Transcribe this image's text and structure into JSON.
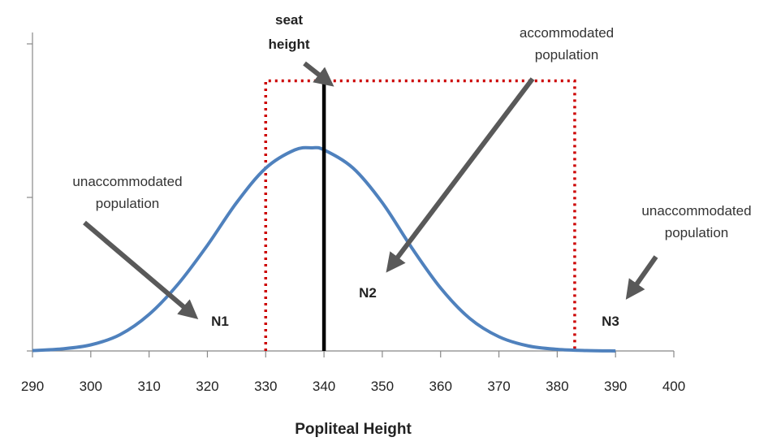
{
  "chart_data": {
    "type": "line",
    "xlabel": "Popliteal Height",
    "ylabel": "",
    "xlim": [
      290,
      400
    ],
    "x_ticks": [
      290,
      300,
      310,
      320,
      330,
      340,
      350,
      360,
      370,
      380,
      390,
      400
    ],
    "y_tick_count": 3,
    "series": [
      {
        "color": "#4f81bd",
        "x": [
          290,
          295,
          300,
          305,
          310,
          315,
          320,
          325,
          330,
          335,
          338,
          340,
          345,
          350,
          355,
          360,
          365,
          370,
          375,
          380,
          385,
          390
        ],
        "y": [
          0.002,
          0.01,
          0.03,
          0.08,
          0.18,
          0.33,
          0.52,
          0.73,
          0.9,
          0.99,
          1.0,
          0.99,
          0.9,
          0.73,
          0.51,
          0.31,
          0.16,
          0.07,
          0.025,
          0.008,
          0.002,
          0.0
        ]
      }
    ],
    "seat_height": {
      "label_line1": "seat",
      "label_line2": "height",
      "x": 340,
      "color": "#000000"
    },
    "accommodated_range": {
      "x_min": 330,
      "x_max": 383,
      "top": 1.33,
      "color": "#cc0000"
    },
    "annotations": {
      "left_unaccommodated": {
        "line1": "unaccommodated",
        "line2": "population"
      },
      "accommodated": {
        "line1": "accommodated",
        "line2": "population"
      },
      "right_unaccommodated": {
        "line1": "unaccommodated",
        "line2": "population"
      },
      "n1": "N1",
      "n2": "N2",
      "n3": "N3"
    },
    "arrow_color": "#595959",
    "grid": false,
    "legend": "none"
  }
}
